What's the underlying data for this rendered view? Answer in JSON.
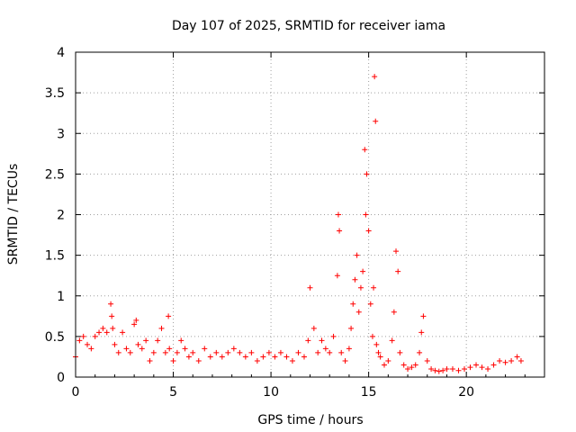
{
  "chart_data": {
    "type": "scatter",
    "title": "Day 107 of 2025, SRMTID for receiver iama",
    "xlabel": "GPS time / hours",
    "ylabel": "SRMTID / TECUs",
    "xlim": [
      0,
      24
    ],
    "ylim": [
      0,
      4
    ],
    "x_ticks": [
      "0",
      "5",
      "10",
      "15",
      "20"
    ],
    "x_tick_values": [
      0,
      5,
      10,
      15,
      20
    ],
    "y_ticks": [
      "0",
      "0.5",
      "1",
      "1.5",
      "2",
      "2.5",
      "3",
      "3.5",
      "4"
    ],
    "y_tick_values": [
      0,
      0.5,
      1,
      1.5,
      2,
      2.5,
      3,
      3.5,
      4
    ],
    "grid": true,
    "marker": "plus",
    "color": "#ff0000",
    "series": [
      {
        "name": "SRMTID",
        "x": [
          0.0,
          0.2,
          0.4,
          0.6,
          0.8,
          1.0,
          1.2,
          1.4,
          1.6,
          1.8,
          1.85,
          1.9,
          2.0,
          2.2,
          2.4,
          2.6,
          2.8,
          3.0,
          3.1,
          3.2,
          3.4,
          3.6,
          3.8,
          4.0,
          4.2,
          4.4,
          4.6,
          4.75,
          4.8,
          5.0,
          5.2,
          5.4,
          5.6,
          5.8,
          6.0,
          6.3,
          6.6,
          6.9,
          7.2,
          7.5,
          7.8,
          8.1,
          8.4,
          8.7,
          9.0,
          9.3,
          9.6,
          9.9,
          10.2,
          10.5,
          10.8,
          11.1,
          11.4,
          11.7,
          11.9,
          12.0,
          12.2,
          12.4,
          12.6,
          12.8,
          13.0,
          13.2,
          13.4,
          13.45,
          13.5,
          13.6,
          13.8,
          14.0,
          14.1,
          14.2,
          14.3,
          14.4,
          14.5,
          14.6,
          14.7,
          14.8,
          14.85,
          14.9,
          15.0,
          15.1,
          15.2,
          15.25,
          15.3,
          15.35,
          15.4,
          15.5,
          15.6,
          15.8,
          16.0,
          16.2,
          16.3,
          16.4,
          16.5,
          16.6,
          16.8,
          17.0,
          17.2,
          17.4,
          17.6,
          17.7,
          17.8,
          18.0,
          18.2,
          18.4,
          18.6,
          18.8,
          19.0,
          19.3,
          19.6,
          19.9,
          20.2,
          20.5,
          20.8,
          21.1,
          21.4,
          21.7,
          22.0,
          22.3,
          22.6,
          22.8
        ],
        "y": [
          0.25,
          0.45,
          0.5,
          0.4,
          0.35,
          0.5,
          0.55,
          0.6,
          0.55,
          0.9,
          0.75,
          0.6,
          0.4,
          0.3,
          0.55,
          0.35,
          0.3,
          0.65,
          0.7,
          0.4,
          0.35,
          0.45,
          0.2,
          0.3,
          0.45,
          0.6,
          0.3,
          0.75,
          0.35,
          0.2,
          0.3,
          0.45,
          0.35,
          0.25,
          0.3,
          0.2,
          0.35,
          0.25,
          0.3,
          0.25,
          0.3,
          0.35,
          0.3,
          0.25,
          0.3,
          0.2,
          0.25,
          0.3,
          0.25,
          0.3,
          0.25,
          0.2,
          0.3,
          0.25,
          0.45,
          1.1,
          0.6,
          0.3,
          0.45,
          0.35,
          0.3,
          0.5,
          1.25,
          2.0,
          1.8,
          0.3,
          0.2,
          0.35,
          0.6,
          0.9,
          1.2,
          1.5,
          0.8,
          1.1,
          1.3,
          2.8,
          2.0,
          2.5,
          1.8,
          0.9,
          0.5,
          1.1,
          3.7,
          3.15,
          0.4,
          0.3,
          0.25,
          0.15,
          0.2,
          0.45,
          0.8,
          1.55,
          1.3,
          0.3,
          0.15,
          0.1,
          0.12,
          0.15,
          0.3,
          0.55,
          0.75,
          0.2,
          0.1,
          0.08,
          0.07,
          0.08,
          0.1,
          0.1,
          0.08,
          0.1,
          0.12,
          0.15,
          0.12,
          0.1,
          0.15,
          0.2,
          0.18,
          0.2,
          0.25,
          0.2
        ]
      }
    ]
  }
}
